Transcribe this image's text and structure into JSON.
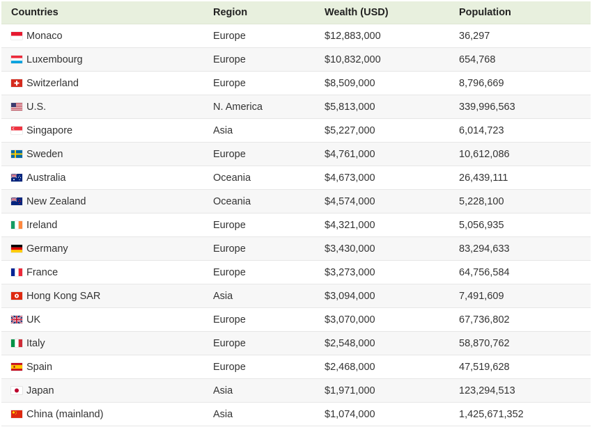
{
  "headers": [
    "Countries",
    "Region",
    "Wealth (USD)",
    "Population"
  ],
  "rows": [
    {
      "country": "Monaco",
      "flag": "monaco-flag-icon",
      "region": "Europe",
      "wealth": "$12,883,000",
      "population": "36,297"
    },
    {
      "country": "Luxembourg",
      "flag": "luxembourg-flag-icon",
      "region": "Europe",
      "wealth": "$10,832,000",
      "population": "654,768"
    },
    {
      "country": "Switzerland",
      "flag": "switzerland-flag-icon",
      "region": "Europe",
      "wealth": "$8,509,000",
      "population": "8,796,669"
    },
    {
      "country": "U.S.",
      "flag": "us-flag-icon",
      "region": "N. America",
      "wealth": "$5,813,000",
      "population": "339,996,563"
    },
    {
      "country": "Singapore",
      "flag": "singapore-flag-icon",
      "region": "Asia",
      "wealth": "$5,227,000",
      "population": "6,014,723"
    },
    {
      "country": "Sweden",
      "flag": "sweden-flag-icon",
      "region": "Europe",
      "wealth": "$4,761,000",
      "population": "10,612,086"
    },
    {
      "country": "Australia",
      "flag": "australia-flag-icon",
      "region": "Oceania",
      "wealth": "$4,673,000",
      "population": "26,439,111"
    },
    {
      "country": "New Zealand",
      "flag": "new-zealand-flag-icon",
      "region": "Oceania",
      "wealth": "$4,574,000",
      "population": "5,228,100"
    },
    {
      "country": "Ireland",
      "flag": "ireland-flag-icon",
      "region": "Europe",
      "wealth": "$4,321,000",
      "population": "5,056,935"
    },
    {
      "country": "Germany",
      "flag": "germany-flag-icon",
      "region": "Europe",
      "wealth": "$3,430,000",
      "population": "83,294,633"
    },
    {
      "country": "France",
      "flag": "france-flag-icon",
      "region": "Europe",
      "wealth": "$3,273,000",
      "population": "64,756,584"
    },
    {
      "country": "Hong Kong SAR",
      "flag": "hong-kong-flag-icon",
      "region": "Asia",
      "wealth": "$3,094,000",
      "population": "7,491,609"
    },
    {
      "country": "UK",
      "flag": "uk-flag-icon",
      "region": "Europe",
      "wealth": "$3,070,000",
      "population": "67,736,802"
    },
    {
      "country": "Italy",
      "flag": "italy-flag-icon",
      "region": "Europe",
      "wealth": "$2,548,000",
      "population": "58,870,762"
    },
    {
      "country": "Spain",
      "flag": "spain-flag-icon",
      "region": "Europe",
      "wealth": "$2,468,000",
      "population": "47,519,628"
    },
    {
      "country": "Japan",
      "flag": "japan-flag-icon",
      "region": "Asia",
      "wealth": "$1,971,000",
      "population": "123,294,513"
    },
    {
      "country": "China (mainland)",
      "flag": "china-flag-icon",
      "region": "Asia",
      "wealth": "$1,074,000",
      "population": "1,425,671,352"
    }
  ]
}
